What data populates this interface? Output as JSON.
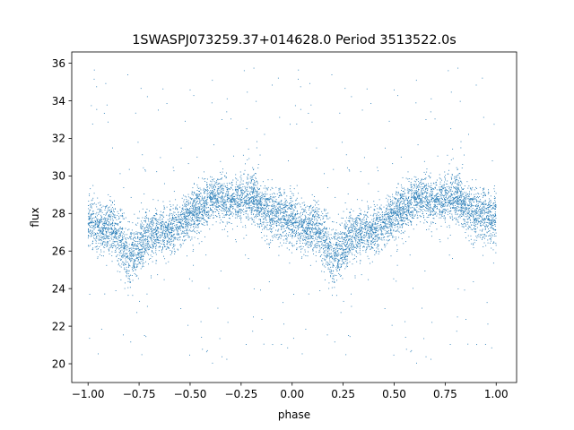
{
  "chart_data": {
    "type": "scatter",
    "title": "1SWASPJ073259.37+014628.0 Period 3513522.0s",
    "xlabel": "phase",
    "ylabel": "flux",
    "xlim": [
      -1.08,
      1.1
    ],
    "ylim": [
      19.0,
      36.6
    ],
    "xticks": [
      -1.0,
      -0.75,
      -0.5,
      -0.25,
      0.0,
      0.25,
      0.5,
      0.75,
      1.0
    ],
    "xtick_labels": [
      "−1.00",
      "−0.75",
      "−0.50",
      "−0.25",
      "0.00",
      "0.25",
      "0.50",
      "0.75",
      "1.00"
    ],
    "yticks": [
      20,
      22,
      24,
      26,
      28,
      30,
      32,
      34,
      36
    ],
    "ytick_labels": [
      "20",
      "22",
      "24",
      "26",
      "28",
      "30",
      "32",
      "34",
      "36"
    ],
    "grid": false,
    "legend": "none",
    "point_color": "#1f77b4",
    "profile": {
      "phase": [
        0.0,
        0.04,
        0.08,
        0.12,
        0.16,
        0.2,
        0.25,
        0.3,
        0.35,
        0.4,
        0.45,
        0.5,
        0.55,
        0.6,
        0.65,
        0.7,
        0.75,
        0.8,
        0.85,
        0.9,
        0.95,
        1.0
      ],
      "median_flux": [
        27.6,
        27.3,
        27.1,
        27.4,
        26.6,
        25.4,
        26.2,
        26.8,
        27.0,
        27.0,
        27.4,
        28.0,
        28.3,
        28.7,
        28.9,
        28.6,
        28.8,
        29.0,
        28.3,
        28.0,
        27.9,
        27.6
      ],
      "scatter_sigma": [
        1.2,
        1.1,
        1.0,
        1.1,
        1.3,
        1.3,
        1.2,
        1.1,
        1.0,
        1.0,
        1.0,
        1.0,
        1.0,
        1.0,
        1.1,
        1.0,
        1.0,
        1.1,
        1.1,
        1.1,
        1.2,
        1.2
      ]
    },
    "n_points_per_cycle": 4200,
    "outlier_range": [
      19.8,
      35.8
    ]
  }
}
